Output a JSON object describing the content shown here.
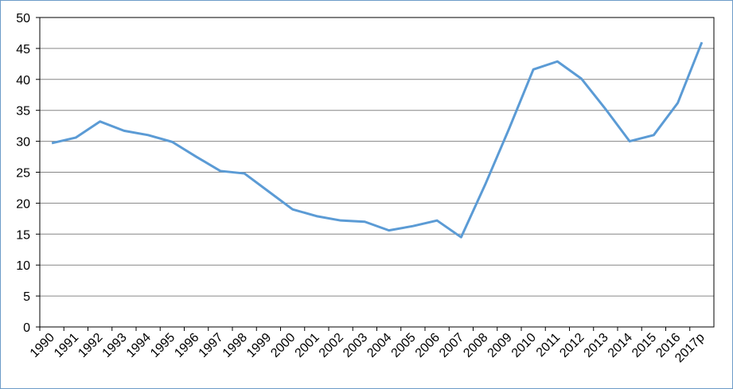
{
  "chart_data": {
    "type": "line",
    "categories": [
      "1990",
      "1991",
      "1992",
      "1993",
      "1994",
      "1995",
      "1996",
      "1997",
      "1998",
      "1999",
      "2000",
      "2001",
      "2002",
      "2003",
      "2004",
      "2005",
      "2006",
      "2007",
      "2008",
      "2009",
      "2010",
      "2011",
      "2012",
      "2013",
      "2014",
      "2015",
      "2016",
      "2017p"
    ],
    "series": [
      {
        "color": "#5b9bd5",
        "values": [
          29.7,
          30.6,
          33.2,
          31.7,
          31.0,
          29.9,
          27.5,
          25.2,
          24.8,
          21.9,
          19.0,
          17.9,
          17.2,
          17.0,
          15.6,
          16.3,
          17.2,
          14.5,
          23.0,
          32.1,
          41.6,
          42.9,
          40.1,
          35.2,
          30.0,
          31.0,
          36.2,
          46.0
        ]
      }
    ],
    "ylim": [
      0,
      50
    ],
    "yticks": [
      0,
      5,
      10,
      15,
      20,
      25,
      30,
      35,
      40,
      45,
      50
    ],
    "grid": true
  }
}
